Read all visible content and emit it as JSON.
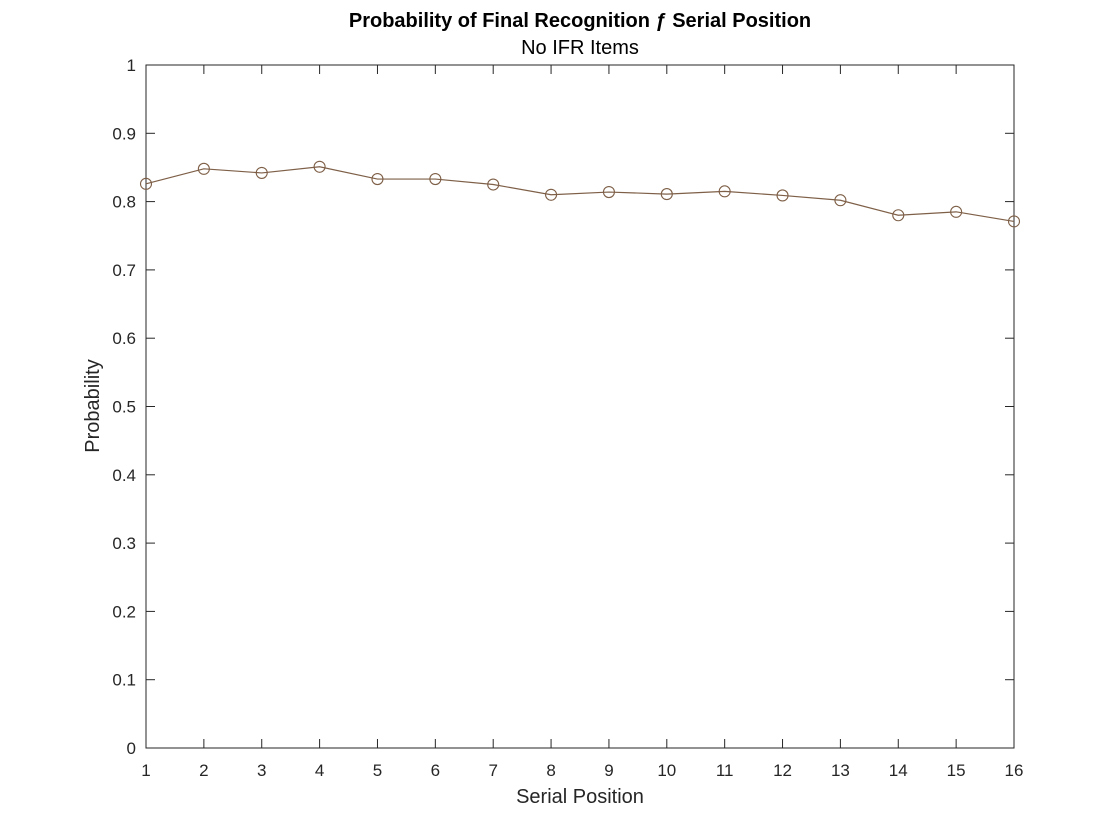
{
  "chart_data": {
    "type": "line",
    "title": "Probability of Final Recognition ƒ Serial Position",
    "subtitle": "No IFR Items",
    "xlabel": "Serial Position",
    "ylabel": "Probability",
    "xlim": [
      1,
      16
    ],
    "ylim": [
      0,
      1
    ],
    "x": [
      1,
      2,
      3,
      4,
      5,
      6,
      7,
      8,
      9,
      10,
      11,
      12,
      13,
      14,
      15,
      16
    ],
    "series": [
      {
        "values": [
          0.826,
          0.848,
          0.842,
          0.851,
          0.833,
          0.833,
          0.825,
          0.81,
          0.814,
          0.811,
          0.815,
          0.809,
          0.802,
          0.78,
          0.785,
          0.771
        ]
      }
    ],
    "marker": "open-circle",
    "grid": false,
    "colors": {
      "line": "#7e5f47",
      "axes": "#262626",
      "background": "#ffffff"
    },
    "x_ticks": [
      1,
      2,
      3,
      4,
      5,
      6,
      7,
      8,
      9,
      10,
      11,
      12,
      13,
      14,
      15,
      16
    ],
    "y_ticks": [
      "0",
      "0.1",
      "0.2",
      "0.3",
      "0.4",
      "0.5",
      "0.6",
      "0.7",
      "0.8",
      "0.9",
      "1"
    ]
  }
}
